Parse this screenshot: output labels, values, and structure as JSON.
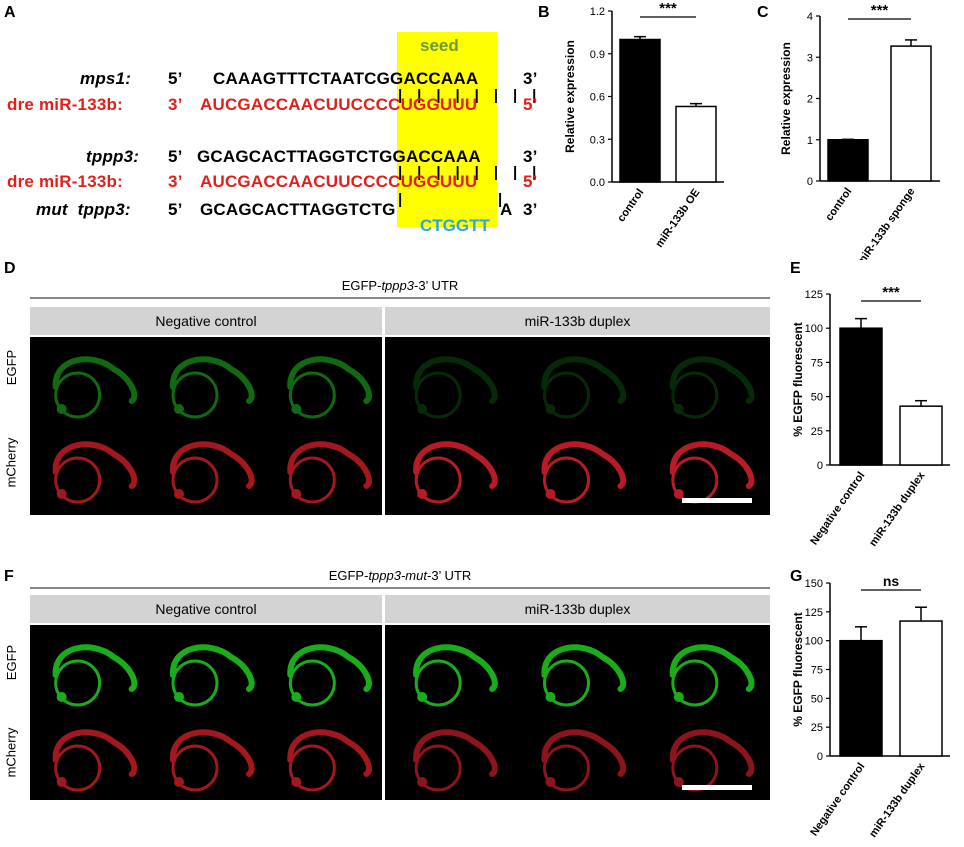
{
  "panel_letters": {
    "A": "A",
    "B": "B",
    "C": "C",
    "D": "D",
    "E": "E",
    "F": "F",
    "G": "G"
  },
  "panel_a": {
    "seed_label": "seed",
    "rows": [
      {
        "name": "mps1:",
        "five": "5’",
        "seq": "CAAAGTTTCTAATCGGACCAAA",
        "three": "3’",
        "color": "black"
      },
      {
        "name": "dre miR-133b:",
        "five": "3’",
        "seq": "AUCGACCAACUUCCCCUGGUUU",
        "three": "5’",
        "color": "red"
      },
      {
        "name": "tppp3:",
        "five": "5’",
        "seq": "GCAGCACTTAGGTCTGGACCAAA",
        "three": "3’",
        "color": "black"
      },
      {
        "name": "dre miR-133b:",
        "five": "3’",
        "seq": "AUCGACCAACUUCCCCUGGUUU",
        "three": "5’",
        "color": "red"
      },
      {
        "name": "mut  tppp3:",
        "five": "5’",
        "seq": "GCAGCACTTAGGTCTG",
        "seq_end": "A",
        "three": "3’",
        "color": "black"
      }
    ],
    "mut_insert": "CTGGTT"
  },
  "panel_b": {
    "chart_data": {
      "type": "bar",
      "categories": [
        "control",
        "miR-133b OE"
      ],
      "values": [
        1.0,
        0.53
      ],
      "errors": [
        0.02,
        0.02
      ],
      "fills": [
        "#000000",
        "#ffffff"
      ],
      "ylabel": "Relative expression",
      "ylim": [
        0,
        1.2
      ],
      "yticks": [
        "0.0",
        "0.3",
        "0.6",
        "0.9",
        "1.2"
      ],
      "significance": "***"
    }
  },
  "panel_c": {
    "chart_data": {
      "type": "bar",
      "categories": [
        "control",
        "miR-133b sponge"
      ],
      "values": [
        1.0,
        3.27
      ],
      "errors": [
        0.01,
        0.15
      ],
      "fills": [
        "#000000",
        "#ffffff"
      ],
      "ylabel": "Relative expression",
      "ylim": [
        0,
        4
      ],
      "yticks": [
        "0",
        "1",
        "2",
        "3",
        "4"
      ],
      "significance": "***"
    }
  },
  "panel_d": {
    "title": "EGFP-tppp3-3’ UTR",
    "title_pre": "EGFP-",
    "title_ital": "tppp3",
    "title_post": "-3’ UTR",
    "headers": [
      "Negative control",
      "miR-133b duplex"
    ],
    "rows": [
      "EGFP",
      "mCherry"
    ],
    "egfp_brightness": "dim"
  },
  "panel_e": {
    "chart_data": {
      "type": "bar",
      "categories": [
        "Negative control",
        "miR-133b duplex"
      ],
      "values": [
        100,
        43
      ],
      "errors": [
        7,
        4
      ],
      "fills": [
        "#000000",
        "#ffffff"
      ],
      "ylabel": "% EGFP fluorescent",
      "ylim": [
        0,
        125
      ],
      "yticks": [
        "0",
        "25",
        "50",
        "75",
        "100",
        "125"
      ],
      "significance": "***"
    }
  },
  "panel_f": {
    "title_pre": "EGFP-",
    "title_ital": "tppp3-mut",
    "title_post": "-3’ UTR",
    "headers": [
      "Negative control",
      "miR-133b duplex"
    ],
    "rows": [
      "EGFP",
      "mCherry"
    ],
    "egfp_brightness": "bright"
  },
  "panel_g": {
    "chart_data": {
      "type": "bar",
      "categories": [
        "Negative control",
        "miR-133b duplex"
      ],
      "values": [
        100,
        117
      ],
      "errors": [
        12,
        12
      ],
      "fills": [
        "#000000",
        "#ffffff"
      ],
      "ylabel": "% EGFP fluorescent",
      "ylim": [
        0,
        150
      ],
      "yticks": [
        "0",
        "25",
        "50",
        "75",
        "100",
        "125",
        "150"
      ],
      "significance": "ns"
    }
  },
  "colors": {
    "seed": "#ffff00",
    "mirna": "#e0201b",
    "mutation": "#2aa7df",
    "egfp": "#1fbf1f",
    "mcherry": "#d8202a"
  }
}
